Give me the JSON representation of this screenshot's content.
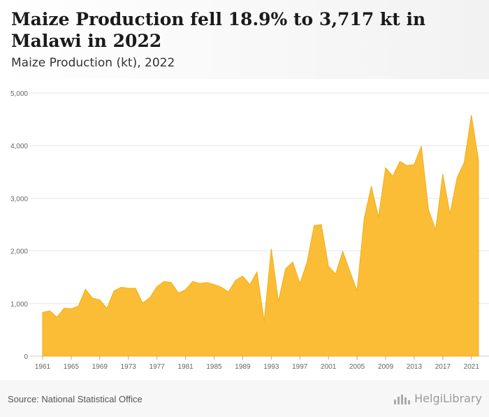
{
  "header": {
    "title": "Maize Production fell 18.9% to 3,717 kt in Malawi in 2022",
    "subtitle": "Maize Production (kt), 2022"
  },
  "footer": {
    "source": "Source: National Statistical Office",
    "brand": "HelgiLibrary"
  },
  "colors": {
    "area_fill": "#fbbd35",
    "area_stroke": "#f2ad18",
    "grid": "#e6e6e6",
    "axis_text": "#666666"
  },
  "chart_data": {
    "type": "area",
    "title": "Maize Production fell 18.9% to 3,717 kt in Malawi in 2022",
    "subtitle": "Maize Production (kt), 2022",
    "xlabel": "",
    "ylabel": "",
    "ylim": [
      0,
      5000
    ],
    "yticks": [
      0,
      1000,
      2000,
      3000,
      4000,
      5000
    ],
    "ytick_labels": [
      "0",
      "1,000",
      "2,000",
      "3,000",
      "4,000",
      "5,000"
    ],
    "xticks": [
      1961,
      1965,
      1969,
      1973,
      1977,
      1981,
      1985,
      1989,
      1993,
      1997,
      2001,
      2005,
      2009,
      2013,
      2017,
      2021
    ],
    "xlim": [
      1961,
      2022
    ],
    "grid": true,
    "legend": "none",
    "x": [
      1961,
      1962,
      1963,
      1964,
      1965,
      1966,
      1967,
      1968,
      1969,
      1970,
      1971,
      1972,
      1973,
      1974,
      1975,
      1976,
      1977,
      1978,
      1979,
      1980,
      1981,
      1982,
      1983,
      1984,
      1985,
      1986,
      1987,
      1988,
      1989,
      1990,
      1991,
      1992,
      1993,
      1994,
      1995,
      1996,
      1997,
      1998,
      1999,
      2000,
      2001,
      2002,
      2003,
      2004,
      2005,
      2006,
      2007,
      2008,
      2009,
      2010,
      2011,
      2012,
      2013,
      2014,
      2015,
      2016,
      2017,
      2018,
      2019,
      2020,
      2021,
      2022
    ],
    "series": [
      {
        "values": [
          830,
          860,
          740,
          910,
          900,
          950,
          1270,
          1100,
          1070,
          910,
          1240,
          1310,
          1290,
          1290,
          1010,
          1110,
          1320,
          1420,
          1400,
          1200,
          1260,
          1420,
          1380,
          1400,
          1360,
          1310,
          1220,
          1440,
          1520,
          1360,
          1600,
          660,
          2040,
          1040,
          1660,
          1790,
          1380,
          1780,
          2480,
          2500,
          1710,
          1560,
          1990,
          1610,
          1240,
          2610,
          3230,
          2640,
          3580,
          3420,
          3700,
          3620,
          3640,
          3990,
          2780,
          2400,
          3460,
          2700,
          3390,
          3680,
          4580,
          3717
        ]
      }
    ]
  }
}
